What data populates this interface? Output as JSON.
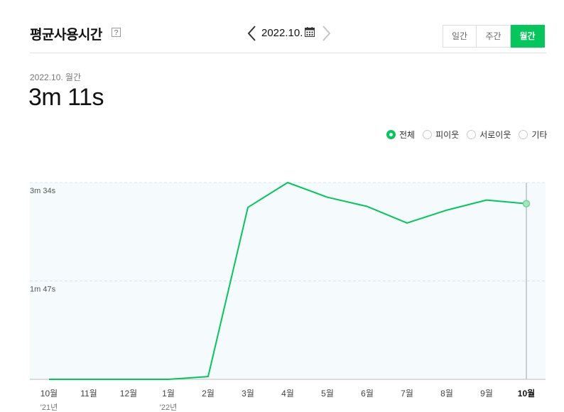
{
  "header": {
    "title": "평균사용시간",
    "help_icon": "?",
    "date_label": "2022.10.",
    "prev_icon": "chevron-left-icon",
    "next_icon": "chevron-right-icon",
    "calendar_icon": "calendar-icon",
    "period_tabs": [
      {
        "label": "일간",
        "active": false
      },
      {
        "label": "주간",
        "active": false
      },
      {
        "label": "월간",
        "active": true
      }
    ]
  },
  "summary": {
    "label": "2022.10. 월간",
    "value": "3m 11s"
  },
  "legend": [
    {
      "label": "전체",
      "checked": true
    },
    {
      "label": "피이웃",
      "checked": false
    },
    {
      "label": "서로이웃",
      "checked": false
    },
    {
      "label": "기타",
      "checked": false
    }
  ],
  "colors": {
    "accent": "#03c75a",
    "plot_background": "#f5fafd",
    "gridline": "#d6e6f0"
  },
  "chart_data": {
    "type": "line",
    "title": "",
    "xlabel": "",
    "ylabel": "",
    "categories": [
      "10월",
      "11월",
      "12월",
      "1월",
      "2월",
      "3월",
      "4월",
      "5월",
      "6월",
      "7월",
      "8월",
      "9월",
      "10월"
    ],
    "year_labels": [
      {
        "index": 0,
        "label": "'21년"
      },
      {
        "index": 3,
        "label": "'22년"
      }
    ],
    "y_ticks": [
      {
        "value": 107,
        "label": "1m 47s"
      },
      {
        "value": 214,
        "label": "3m 34s"
      }
    ],
    "ylim": [
      0,
      214
    ],
    "series": [
      {
        "values": [
          0,
          0,
          0,
          0,
          3,
          187,
          214,
          198,
          188,
          170,
          184,
          195,
          191
        ]
      }
    ],
    "highlight_index": 12,
    "grid": true
  }
}
